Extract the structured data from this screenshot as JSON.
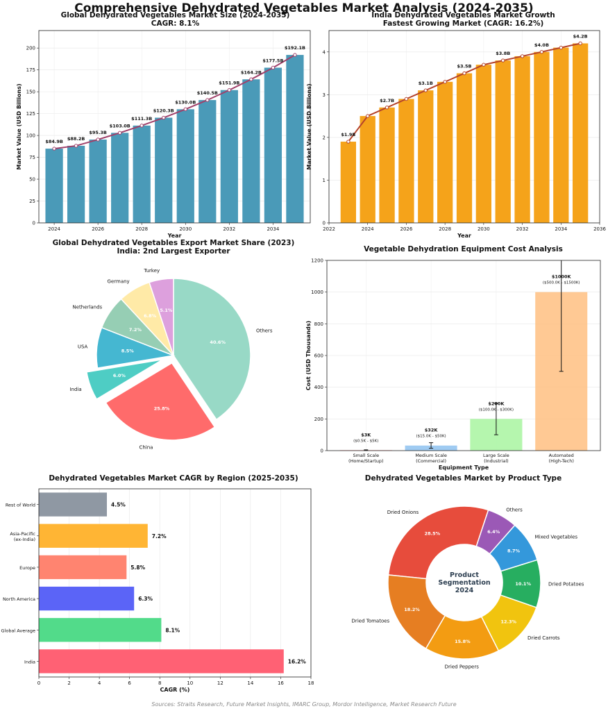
{
  "title": "Comprehensive Dehydrated Vegetables Market Analysis (2024-2035)",
  "source": "Sources: Straits Research, Future Market Insights, IMARC Group, Mordor Intelligence, Market Research Future",
  "panels": {
    "p1": {
      "title": "Global Dehydrated Vegetables Market Size (2024-2035)",
      "subtitle": "CAGR: 8.1%"
    },
    "p2": {
      "title": "India Dehydrated Vegetables Market Growth",
      "subtitle": "Fastest Growing Market (CAGR: 16.2%)"
    },
    "p3": {
      "title": "Global Dehydrated Vegetables Export Market Share (2023)",
      "subtitle": "India: 2nd Largest Exporter"
    },
    "p4": {
      "title": "Vegetable Dehydration Equipment Cost Analysis",
      "subtitle": ""
    },
    "p5": {
      "title": "Dehydrated Vegetables Market CAGR by Region (2025-2035)",
      "subtitle": ""
    },
    "p6": {
      "title": "Dehydrated Vegetables Market by Product Type",
      "subtitle": ""
    }
  },
  "chart_data": [
    {
      "type": "bar",
      "xlabel": "Year",
      "ylabel": "Market Value (USD Billions)",
      "x": [
        2024,
        2025,
        2026,
        2027,
        2028,
        2029,
        2030,
        2031,
        2032,
        2033,
        2034,
        2035
      ],
      "values": [
        84.9,
        88.2,
        95.3,
        103.0,
        111.3,
        120.3,
        130.0,
        140.5,
        151.9,
        164.2,
        177.5,
        192.1
      ],
      "labels": [
        "$84.9B",
        "$88.2B",
        "$95.3B",
        "$103.0B",
        "$111.3B",
        "$120.3B",
        "$130.0B",
        "$140.5B",
        "$151.9B",
        "$164.2B",
        "$177.5B",
        "$192.1B"
      ],
      "labeled_index": [
        0,
        1,
        2,
        3,
        4,
        5,
        6,
        7,
        8,
        9,
        10,
        11
      ],
      "xticks": [
        2024,
        2026,
        2028,
        2030,
        2032,
        2034
      ],
      "yticks": [
        0,
        25,
        50,
        75,
        100,
        125,
        150,
        175,
        200
      ],
      "xlim": [
        2023.3,
        2035.7
      ],
      "ylim": [
        0,
        220
      ],
      "bar_color": "#4a9ab8",
      "line_color": "#a0406a",
      "grid": true
    },
    {
      "type": "bar",
      "xlabel": "Year",
      "ylabel": "Market Value (USD Billions)",
      "x": [
        2023,
        2024,
        2025,
        2026,
        2027,
        2028,
        2029,
        2030,
        2031,
        2032,
        2033,
        2034,
        2035
      ],
      "values": [
        1.9,
        2.5,
        2.7,
        2.9,
        3.1,
        3.3,
        3.5,
        3.7,
        3.8,
        3.9,
        4.0,
        4.1,
        4.2
      ],
      "labels": [
        "$1.9B",
        "",
        "$2.7B",
        "",
        "$3.1B",
        "",
        "$3.5B",
        "",
        "$3.8B",
        "",
        "$4.0B",
        "",
        "$4.2B"
      ],
      "xticks": [
        2022,
        2024,
        2026,
        2028,
        2030,
        2032,
        2034,
        2036
      ],
      "yticks": [
        0,
        1,
        2,
        3,
        4
      ],
      "xlim": [
        2022,
        2036
      ],
      "ylim": [
        0,
        4.5
      ],
      "bar_color": "#f5a31a",
      "line_color": "#b5432a",
      "grid": true
    },
    {
      "type": "pie",
      "labels": [
        "Others",
        "China",
        "India",
        "USA",
        "Netherlands",
        "Germany",
        "Turkey"
      ],
      "values": [
        40.6,
        25.8,
        6.0,
        8.5,
        7.2,
        6.8,
        5.1
      ],
      "pct_labels": [
        "40.6%",
        "25.8%",
        "6.0%",
        "8.5%",
        "7.2%",
        "6.8%",
        "5.1%"
      ],
      "colors": [
        "#98d9c6",
        "#ff6b6b",
        "#4ecdc4",
        "#45b7d1",
        "#96ceb4",
        "#ffeaa7",
        "#dda0dd"
      ],
      "explode": [
        0,
        0.1,
        0.15,
        0,
        0,
        0,
        0
      ]
    },
    {
      "type": "bar",
      "xlabel": "Equipment Type",
      "ylabel": "Cost (USD Thousands)",
      "categories": [
        [
          "Small Scale",
          "(Home/Startup)"
        ],
        [
          "Medium Scale",
          "(Commercial)"
        ],
        [
          "Large Scale",
          "(Industrial)"
        ],
        [
          "Automated",
          "(High-Tech)"
        ]
      ],
      "values": [
        3,
        32,
        200,
        1000
      ],
      "err_low": [
        0.5,
        15,
        100,
        500
      ],
      "err_high": [
        5,
        50,
        300,
        1500
      ],
      "labels": [
        "$3K",
        "$32K",
        "$200K",
        "$1000K"
      ],
      "range_labels": [
        "($0.5K - $5K)",
        "($15.0K - $50K)",
        "($100.0K - $300K)",
        "($500.0K - $1500K)"
      ],
      "colors": [
        "#ff9a9a",
        "#8ec2f0",
        "#a8f5a0",
        "#ffc081"
      ],
      "yticks": [
        0,
        200,
        400,
        600,
        800,
        1000,
        1200
      ],
      "ylim": [
        0,
        1200
      ],
      "grid": true
    },
    {
      "type": "bar",
      "orientation": "horizontal",
      "xlabel": "CAGR (%)",
      "categories": [
        "India",
        "Global Average",
        "North America",
        "Europe",
        "Asia-Pacific\n(ex-India)",
        "Rest of World"
      ],
      "values": [
        16.2,
        8.1,
        6.3,
        5.8,
        7.2,
        4.5
      ],
      "labels": [
        "16.2%",
        "8.1%",
        "6.3%",
        "5.8%",
        "7.2%",
        "4.5%"
      ],
      "colors": [
        "#ff6174",
        "#52db8a",
        "#5b64f7",
        "#ff8470",
        "#ffb534",
        "#8f98a3"
      ],
      "xticks": [
        0,
        2,
        4,
        6,
        8,
        10,
        12,
        14,
        16,
        18
      ],
      "xlim": [
        0,
        18
      ],
      "grid": true
    },
    {
      "type": "pie",
      "variant": "donut",
      "center_text": [
        "Product",
        "Segmentation",
        "2024"
      ],
      "labels": [
        "Dried Onions",
        "Dried Tomatoes",
        "Dried Peppers",
        "Dried Carrots",
        "Dried Potatoes",
        "Mixed Vegetables",
        "Others"
      ],
      "values": [
        28.5,
        18.2,
        15.8,
        12.3,
        10.1,
        8.7,
        6.4
      ],
      "pct_labels": [
        "28.5%",
        "18.2%",
        "15.8%",
        "12.3%",
        "10.1%",
        "8.7%",
        "6.4%"
      ],
      "colors": [
        "#e74c3c",
        "#e67e22",
        "#f39c12",
        "#f1c40f",
        "#27ae60",
        "#3498db",
        "#9b59b6"
      ]
    }
  ]
}
